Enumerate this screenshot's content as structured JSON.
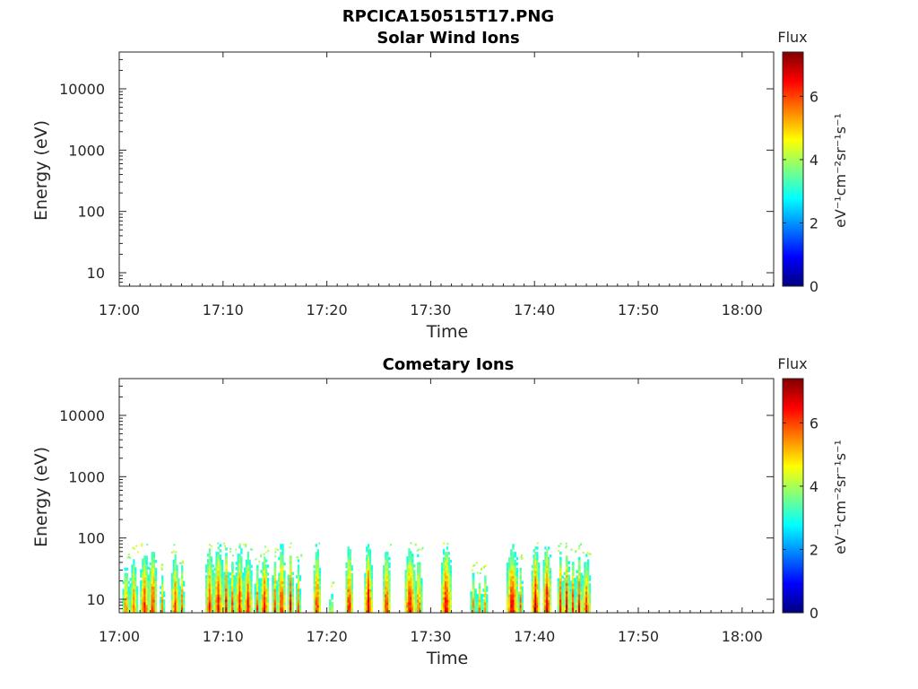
{
  "figure": {
    "title": "RPCICA150515T17.PNG"
  },
  "chart_data": [
    {
      "type": "heatmap",
      "title": "Solar Wind Ions",
      "xlabel": "Time",
      "ylabel": "Energy (eV)",
      "y_scale": "log",
      "x_ticks": [
        "17:00",
        "17:10",
        "17:20",
        "17:30",
        "17:40",
        "17:50",
        "18:00"
      ],
      "y_ticks": [
        "10",
        "100",
        "1000",
        "10000"
      ],
      "colorbar": {
        "label": "Flux",
        "units": "eV⁻¹cm⁻²sr⁻¹s⁻¹",
        "ticks": [
          "0",
          "2",
          "4",
          "6"
        ],
        "range": [
          0,
          7.4
        ],
        "colormap": "jet"
      },
      "bursts": []
    },
    {
      "type": "heatmap",
      "title": "Cometary Ions",
      "xlabel": "Time",
      "ylabel": "Energy (eV)",
      "y_scale": "log",
      "x_ticks": [
        "17:00",
        "17:10",
        "17:20",
        "17:30",
        "17:40",
        "17:50",
        "18:00"
      ],
      "y_ticks": [
        "10",
        "100",
        "1000",
        "10000"
      ],
      "colorbar": {
        "label": "Flux",
        "units": "eV⁻¹cm⁻²sr⁻¹s⁻¹",
        "ticks": [
          "0",
          "2",
          "4",
          "6"
        ],
        "range": [
          0,
          7.4
        ],
        "colormap": "jet"
      },
      "data_extent_minutes": [
        0,
        45.5
      ],
      "energy_range_eV": [
        6,
        80
      ],
      "bursts": [
        {
          "t0": 0.3,
          "t1": 1.0,
          "emax": 40,
          "peak": 6.5
        },
        {
          "t0": 1.0,
          "t1": 1.8,
          "emax": 55,
          "peak": 6.2
        },
        {
          "t0": 2.0,
          "t1": 2.9,
          "emax": 70,
          "peak": 6.8
        },
        {
          "t0": 2.9,
          "t1": 3.6,
          "emax": 80,
          "peak": 7.2
        },
        {
          "t0": 3.9,
          "t1": 4.4,
          "emax": 30,
          "peak": 6.0
        },
        {
          "t0": 5.0,
          "t1": 5.8,
          "emax": 60,
          "peak": 6.7
        },
        {
          "t0": 5.8,
          "t1": 6.3,
          "emax": 40,
          "peak": 6.3
        },
        {
          "t0": 8.3,
          "t1": 9.1,
          "emax": 75,
          "peak": 6.8
        },
        {
          "t0": 9.1,
          "t1": 10.0,
          "emax": 80,
          "peak": 7.1
        },
        {
          "t0": 10.0,
          "t1": 10.6,
          "emax": 70,
          "peak": 6.9
        },
        {
          "t0": 10.6,
          "t1": 11.2,
          "emax": 50,
          "peak": 6.5
        },
        {
          "t0": 11.2,
          "t1": 12.0,
          "emax": 75,
          "peak": 6.9
        },
        {
          "t0": 12.0,
          "t1": 12.8,
          "emax": 60,
          "peak": 7.0
        },
        {
          "t0": 13.0,
          "t1": 13.6,
          "emax": 40,
          "peak": 6.4
        },
        {
          "t0": 13.6,
          "t1": 14.4,
          "emax": 55,
          "peak": 7.1
        },
        {
          "t0": 14.7,
          "t1": 15.3,
          "emax": 50,
          "peak": 6.6
        },
        {
          "t0": 15.3,
          "t1": 16.0,
          "emax": 80,
          "peak": 7.2
        },
        {
          "t0": 16.2,
          "t1": 16.8,
          "emax": 70,
          "peak": 6.8
        },
        {
          "t0": 17.0,
          "t1": 17.5,
          "emax": 45,
          "peak": 6.4
        },
        {
          "t0": 18.7,
          "t1": 19.4,
          "emax": 80,
          "peak": 7.2
        },
        {
          "t0": 20.2,
          "t1": 20.6,
          "emax": 15,
          "peak": 5.2
        },
        {
          "t0": 21.8,
          "t1": 22.5,
          "emax": 80,
          "peak": 7.3
        },
        {
          "t0": 23.6,
          "t1": 24.4,
          "emax": 80,
          "peak": 7.3
        },
        {
          "t0": 25.4,
          "t1": 26.1,
          "emax": 80,
          "peak": 7.2
        },
        {
          "t0": 27.5,
          "t1": 28.5,
          "emax": 75,
          "peak": 7.3
        },
        {
          "t0": 28.5,
          "t1": 29.2,
          "emax": 60,
          "peak": 6.6
        },
        {
          "t0": 31.0,
          "t1": 32.0,
          "emax": 80,
          "peak": 7.3
        },
        {
          "t0": 33.8,
          "t1": 34.4,
          "emax": 30,
          "peak": 6.0
        },
        {
          "t0": 34.4,
          "t1": 35.0,
          "emax": 25,
          "peak": 5.8
        },
        {
          "t0": 35.0,
          "t1": 35.5,
          "emax": 30,
          "peak": 6.0
        },
        {
          "t0": 37.3,
          "t1": 38.4,
          "emax": 80,
          "peak": 7.3
        },
        {
          "t0": 38.4,
          "t1": 38.9,
          "emax": 40,
          "peak": 6.3
        },
        {
          "t0": 39.7,
          "t1": 40.5,
          "emax": 80,
          "peak": 7.3
        },
        {
          "t0": 40.8,
          "t1": 41.6,
          "emax": 80,
          "peak": 7.3
        },
        {
          "t0": 42.2,
          "t1": 42.8,
          "emax": 60,
          "peak": 6.8
        },
        {
          "t0": 42.8,
          "t1": 43.4,
          "emax": 70,
          "peak": 7.0
        },
        {
          "t0": 43.4,
          "t1": 44.0,
          "emax": 50,
          "peak": 6.6
        },
        {
          "t0": 44.0,
          "t1": 44.6,
          "emax": 60,
          "peak": 6.8
        },
        {
          "t0": 44.6,
          "t1": 45.4,
          "emax": 55,
          "peak": 6.7
        }
      ]
    }
  ]
}
